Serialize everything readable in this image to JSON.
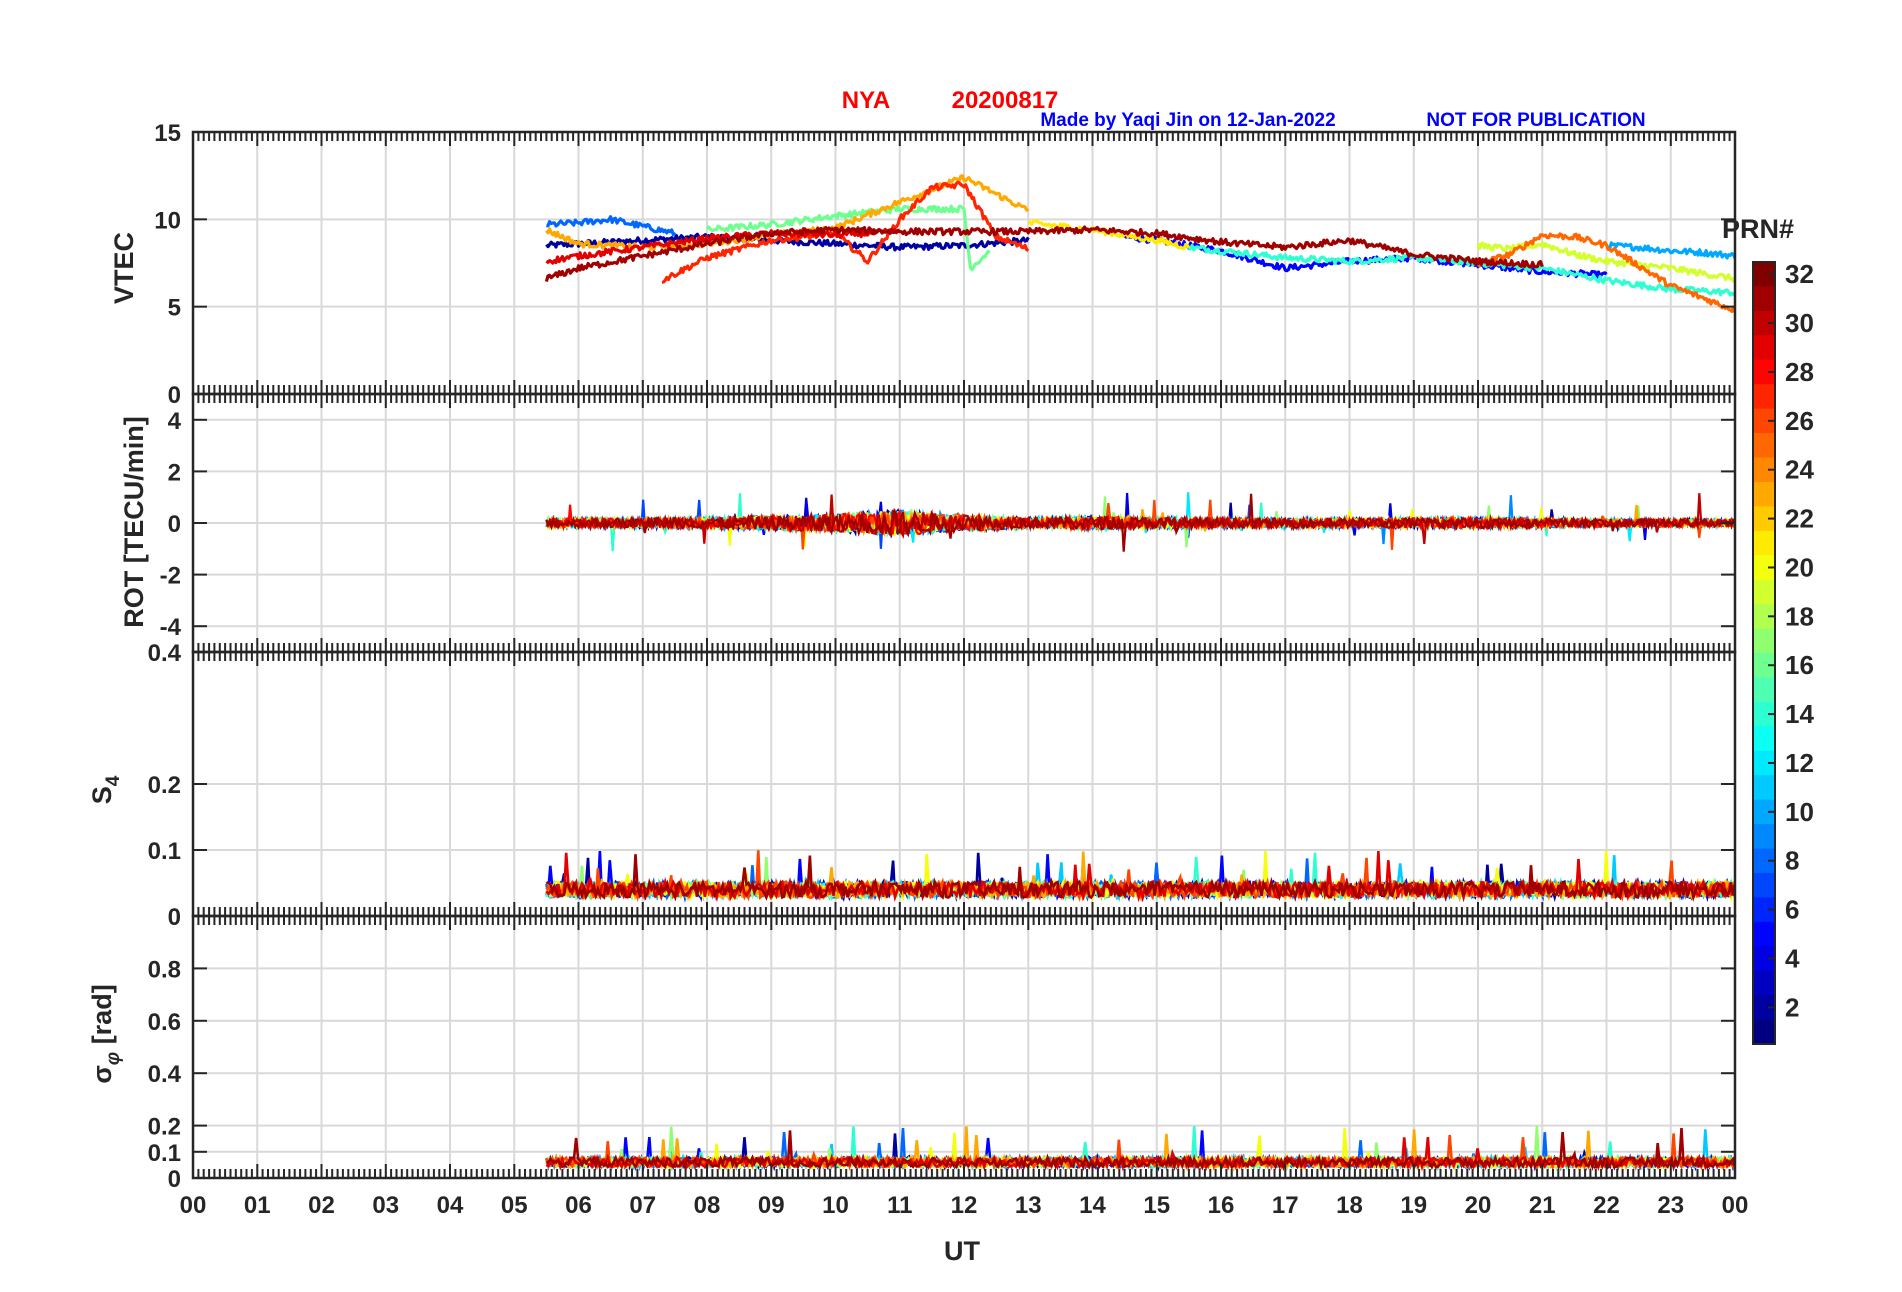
{
  "header": {
    "station": "NYA",
    "date": "20200817",
    "credit": "Made by Yaqi Jin on 12-Jan-2022",
    "notice": "NOT FOR PUBLICATION"
  },
  "colors": {
    "title": "#ff0000",
    "credit": "#0000ff",
    "grid": "#d9d9d9",
    "axis": "#262626"
  },
  "colorbar": {
    "label": "PRN#",
    "min": 1,
    "max": 32,
    "ticks": [
      2,
      4,
      6,
      8,
      10,
      12,
      14,
      16,
      18,
      20,
      22,
      24,
      26,
      28,
      30,
      32
    ],
    "colormap": "jet"
  },
  "chart_data": {
    "type": "line",
    "x_label": "UT",
    "x_range": [
      0,
      24
    ],
    "x_tick_labels": [
      "00",
      "01",
      "02",
      "03",
      "04",
      "05",
      "06",
      "07",
      "08",
      "09",
      "10",
      "11",
      "12",
      "13",
      "14",
      "15",
      "16",
      "17",
      "18",
      "19",
      "20",
      "21",
      "22",
      "23",
      "00"
    ],
    "data_start_ut": 5.5,
    "data_end_ut": 24,
    "panels": [
      {
        "id": "vtec",
        "ylabel": "VTEC",
        "ylim": [
          0,
          15
        ],
        "yticks": [
          0,
          5,
          10,
          15
        ],
        "ytick_labels": [
          "0",
          "5",
          "10",
          "15"
        ],
        "series": [
          {
            "prn": 2,
            "x": [
              5.5,
              6,
              7,
              8,
              9,
              10,
              11,
              12,
              13
            ],
            "y": [
              8.5,
              8.6,
              8.8,
              9.0,
              8.8,
              8.6,
              8.4,
              8.5,
              8.8
            ]
          },
          {
            "prn": 5,
            "x": [
              14.5,
              15,
              16,
              17,
              18,
              19,
              20,
              21,
              22
            ],
            "y": [
              9.0,
              8.8,
              8.2,
              7.2,
              7.6,
              7.8,
              7.4,
              7.0,
              6.8
            ]
          },
          {
            "prn": 8,
            "x": [
              5.5,
              6,
              6.5,
              7,
              7.5
            ],
            "y": [
              9.7,
              9.8,
              10.0,
              9.6,
              9.2
            ]
          },
          {
            "prn": 10,
            "x": [
              22,
              22.5,
              23,
              23.5,
              24
            ],
            "y": [
              8.5,
              8.4,
              8.2,
              8.1,
              7.9
            ]
          },
          {
            "prn": 14,
            "x": [
              15.5,
              16,
              17,
              18,
              19,
              20,
              21,
              22,
              23,
              24
            ],
            "y": [
              8.4,
              8.2,
              7.8,
              7.6,
              7.8,
              7.5,
              7.2,
              6.5,
              6.0,
              5.8
            ]
          },
          {
            "prn": 16,
            "x": [
              8,
              9,
              10,
              11,
              12,
              12.1,
              12.4
            ],
            "y": [
              9.4,
              9.7,
              10.2,
              10.6,
              10.6,
              7.2,
              8.2
            ]
          },
          {
            "prn": 19,
            "x": [
              20,
              20.5,
              21,
              21.5,
              22,
              23,
              24
            ],
            "y": [
              8.5,
              8.3,
              8.6,
              8.0,
              7.6,
              7.2,
              6.6
            ]
          },
          {
            "prn": 21,
            "x": [
              13,
              13.5,
              14,
              15,
              15.5
            ],
            "y": [
              9.8,
              9.6,
              9.4,
              8.8,
              8.4
            ]
          },
          {
            "prn": 23,
            "x": [
              5.5,
              6,
              7,
              8,
              9,
              10,
              11,
              12,
              13
            ],
            "y": [
              9.4,
              8.6,
              8.4,
              8.6,
              9.1,
              9.5,
              11.0,
              12.4,
              10.5
            ]
          },
          {
            "prn": 25,
            "x": [
              20,
              20.5,
              21,
              21.5,
              22,
              23,
              24
            ],
            "y": [
              7.4,
              8.0,
              9.1,
              9.0,
              8.5,
              6.2,
              4.8
            ]
          },
          {
            "prn": 27,
            "x": [
              7.3,
              8,
              9,
              10,
              10.5,
              11,
              11.5,
              12,
              12.5,
              13
            ],
            "y": [
              6.5,
              7.8,
              8.8,
              9.2,
              7.6,
              10.0,
              11.8,
              12.0,
              9.0,
              8.3
            ]
          },
          {
            "prn": 29,
            "x": [
              5.5,
              6,
              7,
              8,
              9,
              10,
              11
            ],
            "y": [
              7.6,
              7.9,
              8.4,
              8.9,
              9.2,
              9.1,
              9.3
            ]
          },
          {
            "prn": 31,
            "x": [
              5.5,
              6,
              7,
              8,
              9,
              10,
              11,
              12,
              13,
              14,
              15,
              16,
              17,
              18,
              19,
              20,
              21
            ],
            "y": [
              6.6,
              7.2,
              7.9,
              8.6,
              9.2,
              9.4,
              9.3,
              9.3,
              9.3,
              9.4,
              9.2,
              8.7,
              8.4,
              8.8,
              8.0,
              7.6,
              7.4
            ]
          }
        ]
      },
      {
        "id": "rot",
        "ylabel": "ROT [TECU/min]",
        "ylim": [
          -5,
          5
        ],
        "yticks": [
          -4,
          -2,
          0,
          2,
          4
        ],
        "ytick_labels": [
          "-4",
          "-2",
          "0",
          "2",
          "4"
        ],
        "baseline": 0,
        "amplitude_profile": {
          "x": [
            5.5,
            8,
            10,
            11,
            12,
            13,
            14,
            16,
            18,
            20,
            22,
            24
          ],
          "y": [
            0.35,
            0.4,
            0.7,
            1.0,
            0.6,
            0.4,
            0.5,
            0.35,
            0.35,
            0.4,
            0.3,
            0.3
          ]
        }
      },
      {
        "id": "s4",
        "ylabel": "S4",
        "ylim": [
          0,
          0.4
        ],
        "yticks": [
          0,
          0.1,
          0.2
        ],
        "ytick_labels": [
          "0",
          "0.1",
          "0.2"
        ],
        "top_label": "0.4",
        "baseline": 0.04,
        "spike_max": 0.1
      },
      {
        "id": "sigma",
        "ylabel": "σφ [rad]",
        "ylim": [
          0,
          1
        ],
        "yticks": [
          0,
          0.1,
          0.2,
          0.4,
          0.6,
          0.8
        ],
        "ytick_labels": [
          "0",
          "0.1",
          "0.2",
          "0.4",
          "0.6",
          "0.8"
        ],
        "baseline": 0.06,
        "spike_max": 0.2
      }
    ]
  }
}
